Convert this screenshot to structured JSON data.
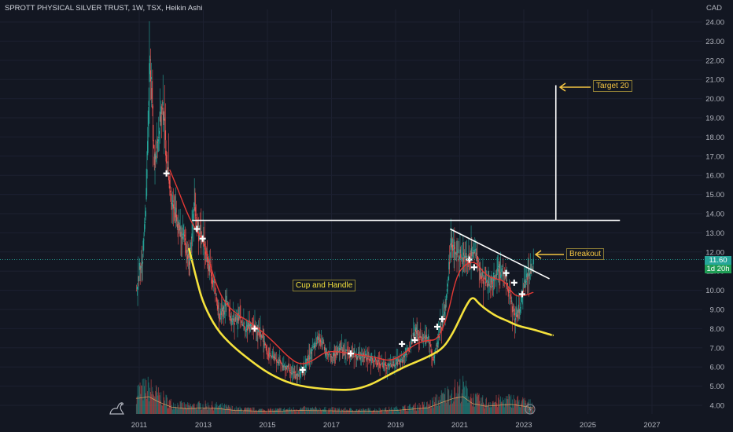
{
  "header": {
    "title": "SPROTT PHYSICAL SILVER TRUST, 1W, TSX, Heikin Ashi",
    "currency": "CAD"
  },
  "price_tags": {
    "last_price": "11.60",
    "countdown": "1d 20h"
  },
  "annotations": {
    "target": "Target 20",
    "breakout": "Breakout",
    "pattern": "Cup and Handle"
  },
  "colors": {
    "background": "#131722",
    "up": "#26a69a",
    "down": "#ef5350",
    "ema": "#e53935",
    "cup": "#f5e23c",
    "lines": "#ffffff",
    "arrow": "#f5c542",
    "label_up": "#26a69a",
    "label_count": "#1f9d55"
  },
  "icons": {
    "logo": "tradingview-dinosaur-icon",
    "bolt": "lightning-icon"
  },
  "chart_data": {
    "type": "candlestick",
    "title": "SPROTT PHYSICAL SILVER TRUST, 1W, TSX, Heikin Ashi",
    "x_ticks": [
      "2011",
      "2013",
      "2015",
      "2017",
      "2019",
      "2021",
      "2023",
      "2025",
      "2027"
    ],
    "xlim": [
      2010.8,
      2028
    ],
    "y_ticks": [
      "4.00",
      "5.00",
      "6.00",
      "7.00",
      "8.00",
      "9.00",
      "10.00",
      "11.00",
      "12.00",
      "13.00",
      "14.00",
      "15.00",
      "16.00",
      "17.00",
      "18.00",
      "19.00",
      "20.00",
      "21.00",
      "22.00",
      "23.00",
      "24.00"
    ],
    "ylim": [
      3.7,
      24.8
    ],
    "price_path": [
      [
        2010.9,
        10.0
      ],
      [
        2011.1,
        12.0
      ],
      [
        2011.2,
        14.5
      ],
      [
        2011.32,
        22.3
      ],
      [
        2011.45,
        16.5
      ],
      [
        2011.6,
        18.5
      ],
      [
        2011.72,
        19.8
      ],
      [
        2011.85,
        16.5
      ],
      [
        2012.0,
        14.5
      ],
      [
        2012.2,
        13.5
      ],
      [
        2012.4,
        12.5
      ],
      [
        2012.55,
        11.5
      ],
      [
        2012.7,
        14.2
      ],
      [
        2012.85,
        13.0
      ],
      [
        2013.0,
        12.4
      ],
      [
        2013.3,
        10.5
      ],
      [
        2013.5,
        8.5
      ],
      [
        2013.7,
        9.3
      ],
      [
        2013.9,
        8.4
      ],
      [
        2014.1,
        8.6
      ],
      [
        2014.3,
        8.0
      ],
      [
        2014.5,
        8.3
      ],
      [
        2014.8,
        7.6
      ],
      [
        2015.0,
        6.8
      ],
      [
        2015.3,
        6.3
      ],
      [
        2015.6,
        6.0
      ],
      [
        2015.9,
        5.5
      ],
      [
        2016.1,
        5.8
      ],
      [
        2016.4,
        7.0
      ],
      [
        2016.6,
        7.6
      ],
      [
        2016.8,
        6.8
      ],
      [
        2017.0,
        6.6
      ],
      [
        2017.3,
        6.9
      ],
      [
        2017.6,
        6.6
      ],
      [
        2017.9,
        6.6
      ],
      [
        2018.2,
        6.5
      ],
      [
        2018.5,
        6.2
      ],
      [
        2018.7,
        6.0
      ],
      [
        2018.9,
        6.2
      ],
      [
        2019.2,
        6.3
      ],
      [
        2019.4,
        7.0
      ],
      [
        2019.6,
        7.9
      ],
      [
        2019.8,
        7.5
      ],
      [
        2020.0,
        7.6
      ],
      [
        2020.15,
        6.3
      ],
      [
        2020.35,
        7.8
      ],
      [
        2020.55,
        9.0
      ],
      [
        2020.7,
        12.5
      ],
      [
        2020.9,
        11.9
      ],
      [
        2021.1,
        11.8
      ],
      [
        2021.25,
        11.5
      ],
      [
        2021.45,
        12.0
      ],
      [
        2021.7,
        10.6
      ],
      [
        2021.9,
        10.2
      ],
      [
        2022.1,
        10.8
      ],
      [
        2022.35,
        11.1
      ],
      [
        2022.55,
        9.8
      ],
      [
        2022.7,
        8.6
      ],
      [
        2022.85,
        9.0
      ],
      [
        2023.0,
        10.4
      ],
      [
        2023.15,
        10.9
      ],
      [
        2023.3,
        11.6
      ]
    ],
    "ema_path": [
      [
        2011.95,
        16.3
      ],
      [
        2012.2,
        15.3
      ],
      [
        2012.5,
        14.0
      ],
      [
        2012.75,
        13.2
      ],
      [
        2013.0,
        12.6
      ],
      [
        2013.3,
        10.8
      ],
      [
        2013.6,
        9.5
      ],
      [
        2014.0,
        8.8
      ],
      [
        2014.4,
        8.4
      ],
      [
        2014.8,
        7.9
      ],
      [
        2015.2,
        7.3
      ],
      [
        2015.6,
        6.6
      ],
      [
        2016.0,
        6.1
      ],
      [
        2016.4,
        6.3
      ],
      [
        2016.8,
        6.8
      ],
      [
        2017.2,
        6.8
      ],
      [
        2017.6,
        6.7
      ],
      [
        2018.0,
        6.6
      ],
      [
        2018.4,
        6.5
      ],
      [
        2018.8,
        6.3
      ],
      [
        2019.2,
        6.6
      ],
      [
        2019.6,
        7.2
      ],
      [
        2020.0,
        7.4
      ],
      [
        2020.3,
        7.4
      ],
      [
        2020.6,
        8.5
      ],
      [
        2020.9,
        10.8
      ],
      [
        2021.2,
        11.4
      ],
      [
        2021.5,
        11.5
      ],
      [
        2021.8,
        10.8
      ],
      [
        2022.1,
        10.6
      ],
      [
        2022.4,
        10.5
      ],
      [
        2022.7,
        9.7
      ],
      [
        2023.0,
        9.7
      ],
      [
        2023.3,
        9.9
      ]
    ],
    "cup_curve": [
      [
        2012.55,
        12.2
      ],
      [
        2012.8,
        10.5
      ],
      [
        2013.0,
        9.3
      ],
      [
        2013.4,
        8.0
      ],
      [
        2013.9,
        7.1
      ],
      [
        2014.5,
        6.3
      ],
      [
        2015.0,
        5.7
      ],
      [
        2015.6,
        5.2
      ],
      [
        2016.2,
        4.95
      ],
      [
        2016.8,
        4.85
      ],
      [
        2017.3,
        4.8
      ],
      [
        2017.7,
        4.82
      ],
      [
        2018.2,
        5.05
      ],
      [
        2018.7,
        5.5
      ],
      [
        2019.2,
        5.95
      ],
      [
        2019.7,
        6.3
      ],
      [
        2020.1,
        6.6
      ],
      [
        2020.5,
        7.0
      ],
      [
        2020.8,
        7.8
      ],
      [
        2021.0,
        8.5
      ],
      [
        2021.2,
        9.2
      ],
      [
        2021.4,
        9.7
      ],
      [
        2021.6,
        9.3
      ],
      [
        2021.9,
        8.9
      ],
      [
        2022.2,
        8.6
      ],
      [
        2022.5,
        8.4
      ],
      [
        2022.8,
        8.15
      ],
      [
        2023.2,
        8.0
      ],
      [
        2023.6,
        7.8
      ],
      [
        2023.9,
        7.65
      ]
    ],
    "resistance_line": {
      "x": [
        2012.65,
        2026.0
      ],
      "y": [
        13.65,
        13.65
      ]
    },
    "target_line": {
      "x": [
        2024.0,
        2024.0
      ],
      "y": [
        13.65,
        20.7
      ]
    },
    "downtrend_line": {
      "x": [
        2020.7,
        2023.8
      ],
      "y": [
        13.2,
        10.6
      ]
    },
    "markers": [
      [
        2011.85,
        16.1
      ],
      [
        2012.8,
        13.2
      ],
      [
        2012.98,
        12.7
      ],
      [
        2014.6,
        8.0
      ],
      [
        2016.1,
        5.85
      ],
      [
        2017.6,
        6.7
      ],
      [
        2019.2,
        7.2
      ],
      [
        2019.6,
        7.4
      ],
      [
        2020.3,
        8.1
      ],
      [
        2020.45,
        8.5
      ],
      [
        2021.3,
        11.6
      ],
      [
        2021.45,
        11.2
      ],
      [
        2022.45,
        10.9
      ],
      [
        2022.7,
        10.4
      ],
      [
        2022.95,
        9.8
      ]
    ],
    "volume_path": [
      [
        2010.95,
        0.9
      ],
      [
        2011.3,
        1.0
      ],
      [
        2011.6,
        0.7
      ],
      [
        2012.0,
        0.4
      ],
      [
        2012.5,
        0.3
      ],
      [
        2013.0,
        0.35
      ],
      [
        2013.5,
        0.3
      ],
      [
        2014.0,
        0.2
      ],
      [
        2015.0,
        0.15
      ],
      [
        2016.0,
        0.2
      ],
      [
        2017.0,
        0.18
      ],
      [
        2018.0,
        0.15
      ],
      [
        2019.0,
        0.2
      ],
      [
        2020.0,
        0.35
      ],
      [
        2020.5,
        0.7
      ],
      [
        2020.8,
        0.9
      ],
      [
        2021.1,
        1.0
      ],
      [
        2021.4,
        0.6
      ],
      [
        2021.8,
        0.45
      ],
      [
        2022.2,
        0.5
      ],
      [
        2022.6,
        0.55
      ],
      [
        2023.0,
        0.45
      ],
      [
        2023.3,
        0.35
      ]
    ]
  }
}
